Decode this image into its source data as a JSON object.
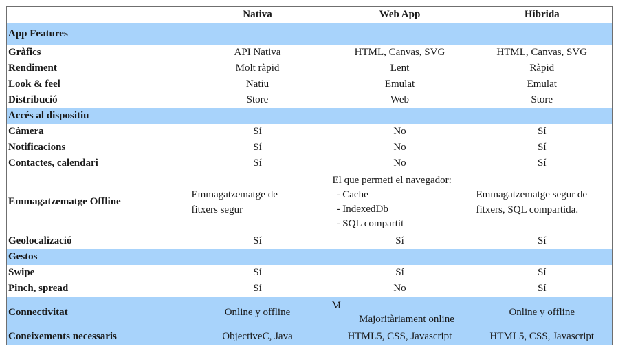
{
  "header": {
    "col1": "Nativa",
    "col2": "Web App",
    "col3": "Híbrida"
  },
  "sections": {
    "app_features": "App Features",
    "acces": "Accés al dispositiu",
    "gestos": "Gestos"
  },
  "rows": {
    "grafics": {
      "label": "Gràfics",
      "nativa": "API Nativa",
      "web": "HTML, Canvas, SVG",
      "hibrida": "HTML, Canvas, SVG"
    },
    "rendiment": {
      "label": "Rendiment",
      "nativa": "Molt ràpid",
      "web": "Lent",
      "hibrida": "Ràpid"
    },
    "look": {
      "label": "Look & feel",
      "nativa": "Natiu",
      "web": "Emulat",
      "hibrida": "Emulat"
    },
    "distribucio": {
      "label": "Distribució",
      "nativa": "Store",
      "web": "Web",
      "hibrida": "Store"
    },
    "camera": {
      "label": "Càmera",
      "nativa": "Sí",
      "web": "No",
      "hibrida": "Sí"
    },
    "notificacions": {
      "label": "Notificacions",
      "nativa": "Sí",
      "web": "No",
      "hibrida": "Sí"
    },
    "contactes": {
      "label": "Contactes, calendari",
      "nativa": "Sí",
      "web": "No",
      "hibrida": "Sí"
    },
    "offline": {
      "label": "Emmagatzematge Offline",
      "nativa_1": "Emmagatzematge de",
      "nativa_2": "fitxers segur",
      "web_1": "El que permeti el navegador:",
      "web_2": "- Cache",
      "web_3": "- IndexedDb",
      "web_4": "- SQL compartit",
      "hibrida_1": "Emmagatzematge segur de",
      "hibrida_2": "fitxers, SQL compartida."
    },
    "geo": {
      "label": "Geolocalizació",
      "nativa": "Sí",
      "web": "Sí",
      "hibrida": "Sí"
    },
    "swipe": {
      "label": "Swipe",
      "nativa": "Sí",
      "web": "Sí",
      "hibrida": "Sí"
    },
    "pinch": {
      "label": "Pinch, spread",
      "nativa": "Sí",
      "web": "No",
      "hibrida": "Sí"
    },
    "connectivitat": {
      "label": "Connectivitat",
      "nativa": "Online y offline",
      "web_1": "M",
      "web_2": "Majoritàriament online",
      "hibrida": "Online y offline"
    },
    "coneixements": {
      "label": "Coneixements necessaris",
      "nativa": "ObjectiveC, Java",
      "web": "HTML5, CSS, Javascript",
      "hibrida": "HTML5, CSS, Javascript"
    }
  }
}
